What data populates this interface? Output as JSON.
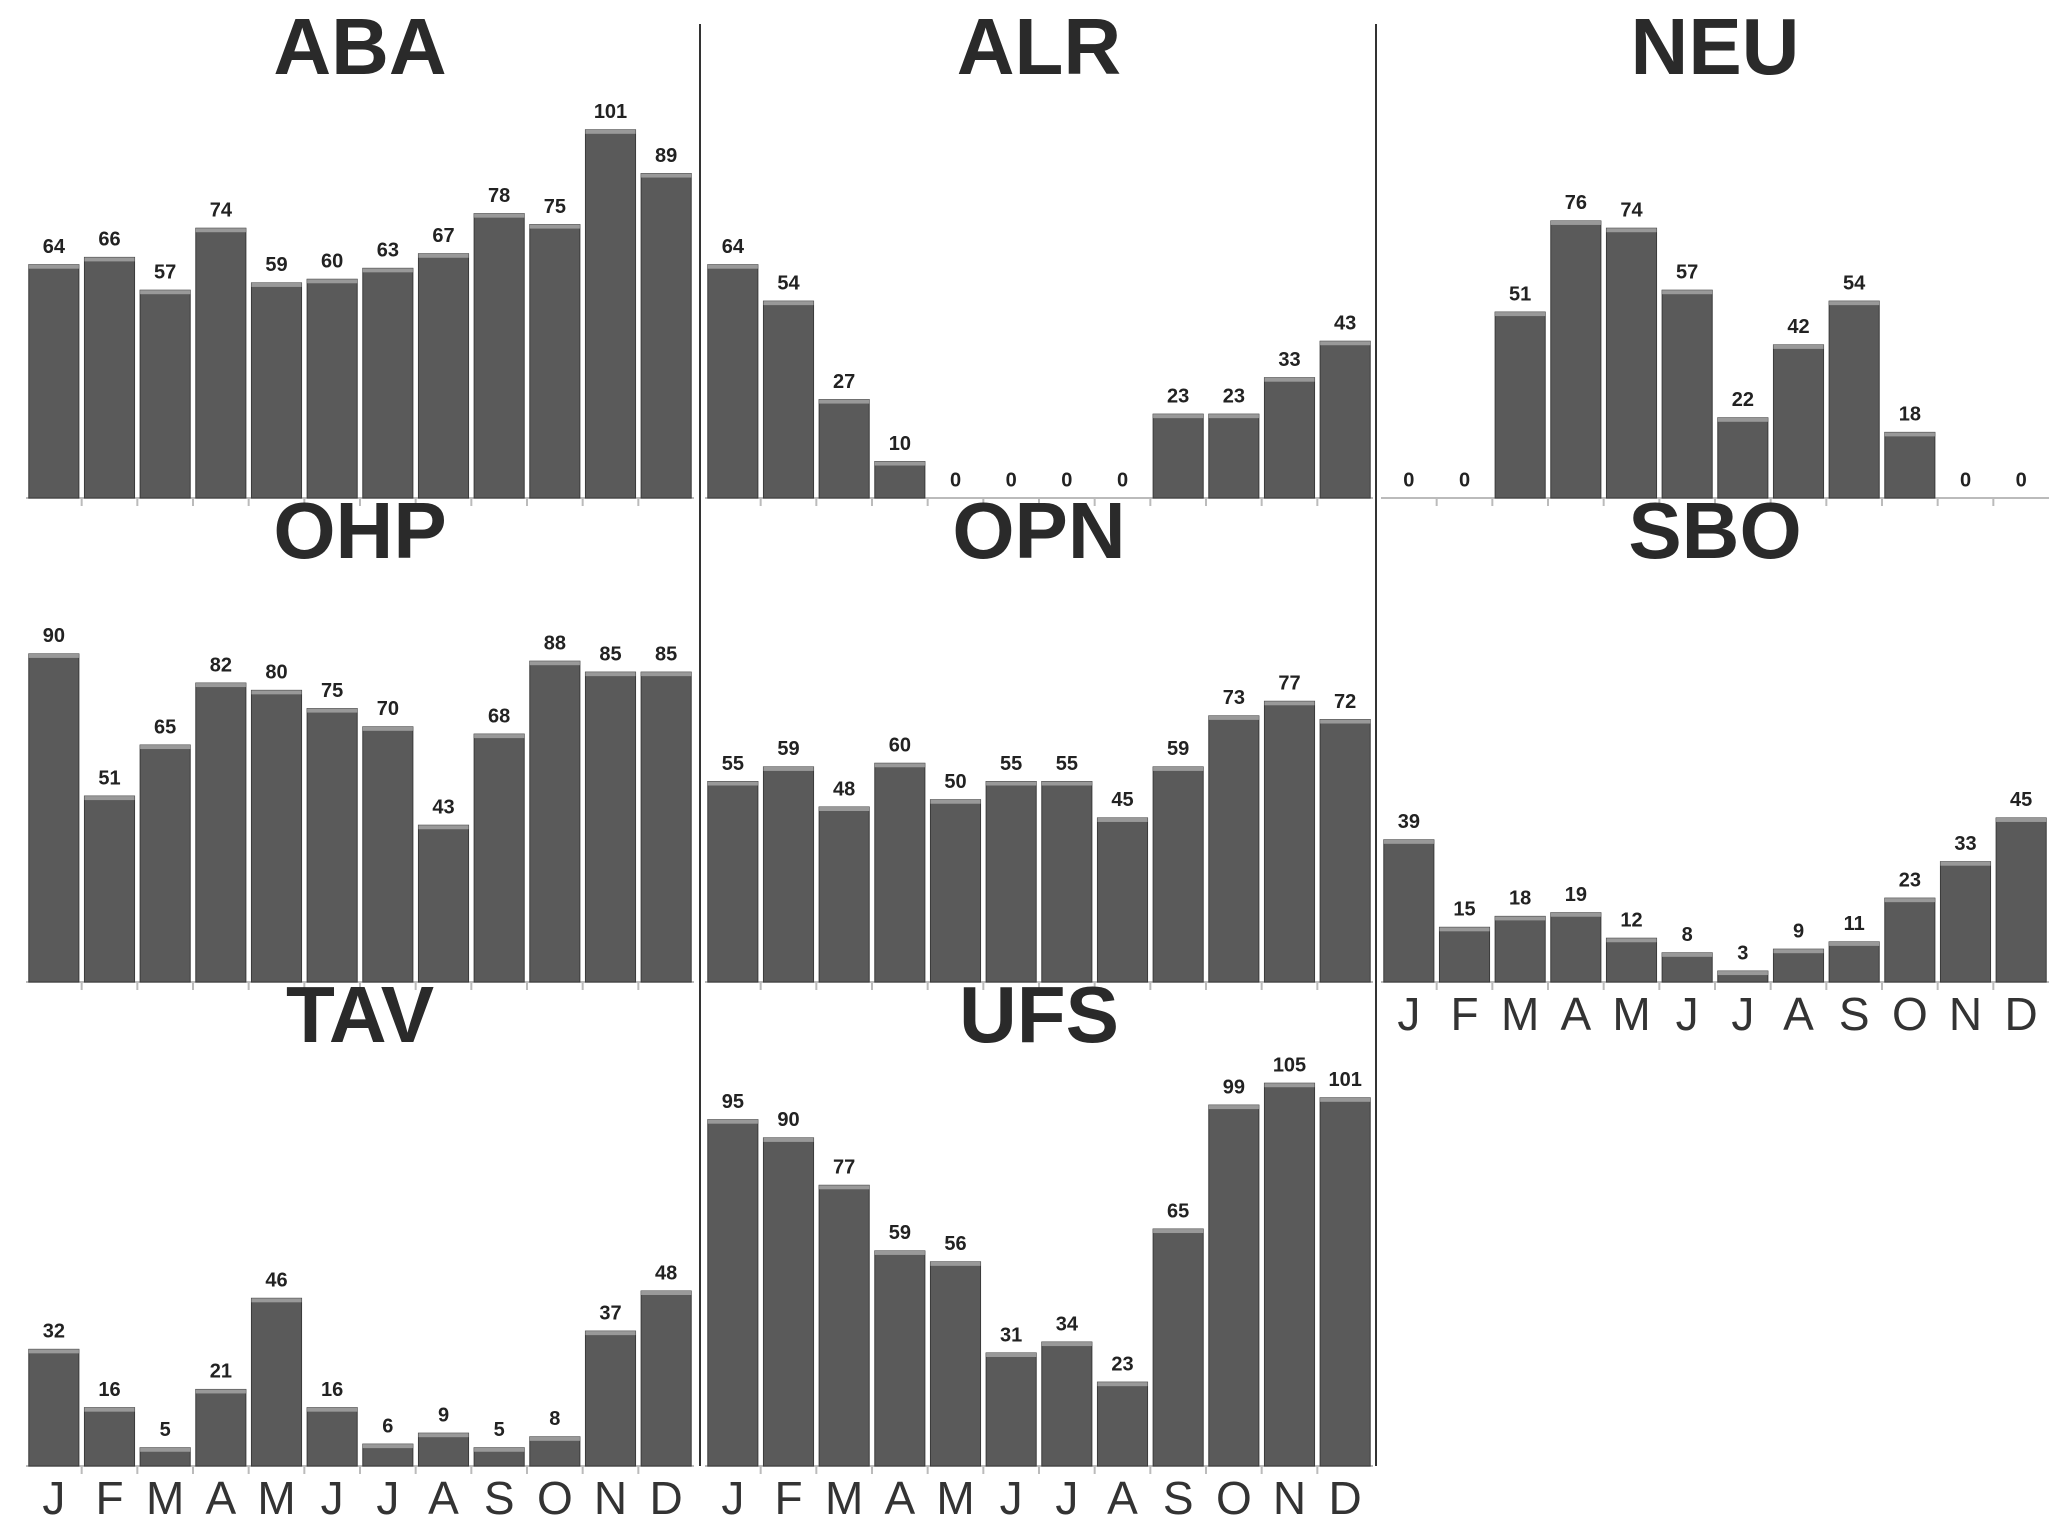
{
  "chart_data": [
    {
      "type": "bar",
      "title": "ABA",
      "values": [
        64,
        66,
        57,
        74,
        59,
        60,
        63,
        67,
        78,
        75,
        101,
        89
      ],
      "ylim": [
        0,
        110
      ],
      "color": "#5a5a5a"
    },
    {
      "type": "bar",
      "title": "ALR",
      "values": [
        64,
        54,
        27,
        10,
        0,
        0,
        0,
        0,
        23,
        23,
        33,
        43
      ],
      "ylim": [
        0,
        110
      ],
      "color": "#5a5a5a"
    },
    {
      "type": "bar",
      "title": "NEU",
      "values": [
        0,
        0,
        51,
        76,
        74,
        57,
        22,
        42,
        54,
        18,
        0,
        0
      ],
      "ylim": [
        0,
        110
      ],
      "color": "#5a5a5a"
    },
    {
      "type": "bar",
      "title": "OHP",
      "values": [
        90,
        51,
        65,
        82,
        80,
        75,
        70,
        43,
        68,
        88,
        85,
        85
      ],
      "ylim": [
        0,
        110
      ],
      "color": "#5a5a5a"
    },
    {
      "type": "bar",
      "title": "OPN",
      "values": [
        55,
        59,
        48,
        60,
        50,
        55,
        55,
        45,
        59,
        73,
        77,
        72
      ],
      "ylim": [
        0,
        110
      ],
      "color": "#5a5a5a"
    },
    {
      "type": "bar",
      "title": "SBO",
      "categories": [
        "J",
        "F",
        "M",
        "A",
        "M",
        "J",
        "J",
        "A",
        "S",
        "O",
        "N",
        "D"
      ],
      "values": [
        39,
        15,
        18,
        19,
        12,
        8,
        3,
        9,
        11,
        23,
        33,
        45
      ],
      "ylim": [
        0,
        110
      ],
      "color": "#5a5a5a"
    },
    {
      "type": "bar",
      "title": "TAV",
      "categories": [
        "J",
        "F",
        "M",
        "A",
        "M",
        "J",
        "J",
        "A",
        "S",
        "O",
        "N",
        "D"
      ],
      "values": [
        32,
        16,
        5,
        21,
        46,
        16,
        6,
        9,
        5,
        8,
        37,
        48
      ],
      "ylim": [
        0,
        110
      ],
      "color": "#5a5a5a"
    },
    {
      "type": "bar",
      "title": "UFS",
      "categories": [
        "J",
        "F",
        "M",
        "A",
        "M",
        "J",
        "J",
        "A",
        "S",
        "O",
        "N",
        "D"
      ],
      "values": [
        95,
        90,
        77,
        59,
        56,
        31,
        34,
        23,
        65,
        99,
        105,
        101
      ],
      "ylim": [
        0,
        110
      ],
      "color": "#5a5a5a"
    }
  ]
}
